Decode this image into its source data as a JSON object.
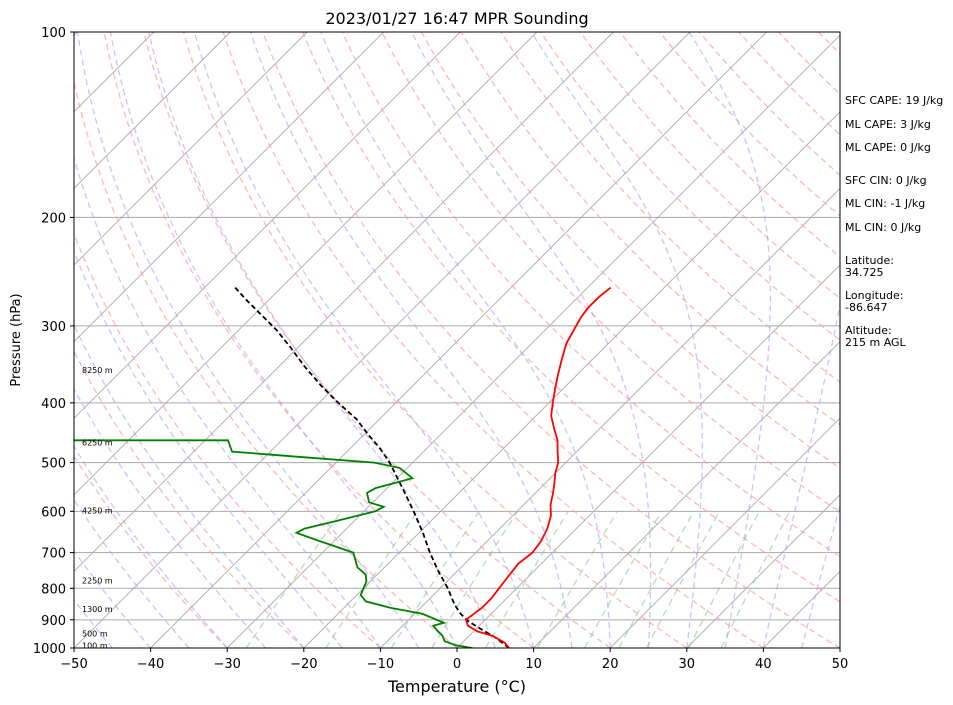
{
  "chart_data": {
    "type": "line",
    "title": "2023/01/27 16:47 MPR Sounding",
    "xlabel": "Temperature (°C)",
    "ylabel": "Pressure (hPa)",
    "xlim": [
      -50,
      50
    ],
    "ylim": [
      1000,
      100
    ],
    "y_scale": "log",
    "x_ticks": [
      -50,
      -40,
      -30,
      -20,
      -10,
      0,
      10,
      20,
      30,
      40,
      50
    ],
    "y_ticks": [
      100,
      200,
      300,
      400,
      500,
      600,
      700,
      800,
      900,
      1000
    ],
    "grid": true,
    "temperature": {
      "color": "#ff0000",
      "points": [
        [
          6.8,
          1000
        ],
        [
          5.5,
          980
        ],
        [
          3.0,
          955
        ],
        [
          0.5,
          940
        ],
        [
          -1.5,
          920
        ],
        [
          -2.5,
          900
        ],
        [
          -2.0,
          860
        ],
        [
          -2.0,
          830
        ],
        [
          -2.3,
          800
        ],
        [
          -2.5,
          780
        ],
        [
          -2.7,
          760
        ],
        [
          -3.0,
          730
        ],
        [
          -2.6,
          700
        ],
        [
          -3.0,
          670
        ],
        [
          -3.8,
          640
        ],
        [
          -5.0,
          610
        ],
        [
          -6.5,
          585
        ],
        [
          -7.7,
          560
        ],
        [
          -8.8,
          540
        ],
        [
          -10.0,
          520
        ],
        [
          -11.0,
          500
        ],
        [
          -12.5,
          480
        ],
        [
          -14.0,
          460
        ],
        [
          -16.0,
          440
        ],
        [
          -18.0,
          420
        ],
        [
          -19.5,
          400
        ],
        [
          -21.0,
          380
        ],
        [
          -22.5,
          360
        ],
        [
          -24.0,
          340
        ],
        [
          -25.5,
          320
        ],
        [
          -26.5,
          300
        ],
        [
          -27.0,
          290
        ],
        [
          -27.3,
          280
        ],
        [
          -27.3,
          270
        ],
        [
          -27.0,
          260
        ]
      ]
    },
    "dewpoint": {
      "color": "#008000",
      "points": [
        [
          2.0,
          1000
        ],
        [
          -0.5,
          990
        ],
        [
          -2.5,
          975
        ],
        [
          -3.5,
          955
        ],
        [
          -5.0,
          935
        ],
        [
          -6.0,
          920
        ],
        [
          -5.0,
          910
        ],
        [
          -9.0,
          880
        ],
        [
          -14.0,
          860
        ],
        [
          -18.0,
          840
        ],
        [
          -19.5,
          820
        ],
        [
          -20.0,
          800
        ],
        [
          -20.5,
          780
        ],
        [
          -21.5,
          760
        ],
        [
          -23.5,
          740
        ],
        [
          -26.0,
          700
        ],
        [
          -32.0,
          670
        ],
        [
          -36.0,
          650
        ],
        [
          -35.5,
          640
        ],
        [
          -32.0,
          620
        ],
        [
          -28.5,
          600
        ],
        [
          -28.0,
          590
        ],
        [
          -30.5,
          580
        ],
        [
          -32.0,
          560
        ],
        [
          -31.5,
          550
        ],
        [
          -28.0,
          530
        ],
        [
          -31.0,
          510
        ],
        [
          -35.0,
          500
        ],
        [
          -45.0,
          490
        ],
        [
          -55.0,
          480
        ],
        [
          -56.0,
          470
        ],
        [
          -57.0,
          460
        ],
        [
          -80.0,
          460
        ]
      ]
    },
    "parcel": {
      "color": "#000000",
      "points": [
        [
          6.8,
          1000
        ],
        [
          3.5,
          960
        ],
        [
          0.5,
          930
        ],
        [
          -2.0,
          905
        ],
        [
          -4.0,
          880
        ],
        [
          -6.0,
          850
        ],
        [
          -9.0,
          800
        ],
        [
          -12.5,
          750
        ],
        [
          -16.0,
          700
        ],
        [
          -19.5,
          650
        ],
        [
          -23.5,
          600
        ],
        [
          -28.0,
          550
        ],
        [
          -33.0,
          500
        ],
        [
          -36.0,
          475
        ],
        [
          -39.5,
          450
        ],
        [
          -43.0,
          425
        ],
        [
          -47.5,
          400
        ],
        [
          -52.0,
          375
        ],
        [
          -56.5,
          350
        ],
        [
          -61.0,
          325
        ],
        [
          -65.0,
          305
        ],
        [
          -69.0,
          288
        ],
        [
          -73.0,
          272
        ],
        [
          -76.0,
          260
        ]
      ]
    },
    "height_labels": [
      {
        "text": "100 m",
        "p": 995
      },
      {
        "text": "500 m",
        "p": 950
      },
      {
        "text": "1300 m",
        "p": 868
      },
      {
        "text": "2250 m",
        "p": 780
      },
      {
        "text": "4250 m",
        "p": 600
      },
      {
        "text": "6250 m",
        "p": 466
      },
      {
        "text": "8250 m",
        "p": 355
      }
    ],
    "info_lines": [
      "SFC CAPE: 19 J/kg",
      "ML CAPE: 3 J/kg",
      "ML CAPE: 0 J/kg",
      "SFC CIN: 0 J/kg",
      "ML CIN: -1 J/kg",
      "ML CIN: 0 J/kg",
      "Latitude:",
      "34.725",
      "Longitude:",
      "-86.647",
      "Altitude:",
      "215 m AGL"
    ]
  }
}
